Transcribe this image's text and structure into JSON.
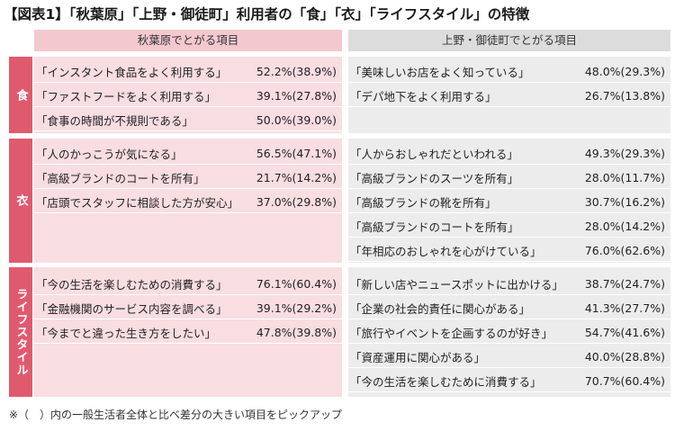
{
  "title": "【図表1】「秋葉原」「上野・御徒町」利用者の「食」「衣」「ライフスタイル」の特徴",
  "headers": {
    "left": "秋葉原でとがる項目",
    "right": "上野・御徒町でとがる項目"
  },
  "categories": {
    "food": "食",
    "clothing": "衣",
    "lifestyle": "ライフスタイル"
  },
  "food": {
    "left": [
      {
        "label": "「インスタント食品をよく利用する」",
        "value": "52.2%(38.9%)"
      },
      {
        "label": "「ファストフードをよく利用する」",
        "value": "39.1%(27.8%)"
      },
      {
        "label": "「食事の時間が不規則である」",
        "value": "50.0%(39.0%)"
      }
    ],
    "right": [
      {
        "label": "「美味しいお店をよく知っている」",
        "value": "48.0%(29.3%)"
      },
      {
        "label": "「デパ地下をよく利用する」",
        "value": "26.7%(13.8%)"
      }
    ]
  },
  "clothing": {
    "left": [
      {
        "label": "「人のかっこうが気になる」",
        "value": "56.5%(47.1%)"
      },
      {
        "label": "「高級ブランドのコートを所有」",
        "value": "21.7%(14.2%)"
      },
      {
        "label": "「店頭でスタッフに相談した方が安心」",
        "value": "37.0%(29.8%)"
      }
    ],
    "right": [
      {
        "label": "「人からおしゃれだといわれる」",
        "value": "49.3%(29.3%)"
      },
      {
        "label": "「高級ブランドのスーツを所有」",
        "value": "28.0%(11.7%)"
      },
      {
        "label": "「高級ブランドの靴を所有」",
        "value": "30.7%(16.2%)"
      },
      {
        "label": "「高級ブランドのコートを所有」",
        "value": "28.0%(14.2%)"
      },
      {
        "label": "「年相応のおしゃれを心がけている」",
        "value": "76.0%(62.6%)"
      }
    ]
  },
  "lifestyle": {
    "left": [
      {
        "label": "「今の生活を楽しむための消費する」",
        "value": "76.1%(60.4%)"
      },
      {
        "label": "「金融機関のサービス内容を調べる」",
        "value": "39.1%(29.2%)"
      },
      {
        "label": "「今までと違った生き方をしたい」",
        "value": "47.8%(39.8%)"
      }
    ],
    "right": [
      {
        "label": "「新しい店やニュースポットに出かける」",
        "value": "38.7%(24.7%)"
      },
      {
        "label": "「企業の社会的責任に関心がある」",
        "value": "41.3%(27.7%)"
      },
      {
        "label": "「旅行やイベントを企画するのが好き」",
        "value": "54.7%(41.6%)"
      },
      {
        "label": "「資産運用に関心がある」",
        "value": "40.0%(28.8%)"
      },
      {
        "label": "「今の生活を楽しむために消費する」",
        "value": "70.7%(60.4%)"
      }
    ]
  },
  "footnote": "※（　）内の一般生活者全体と比べ差分の大きい項目をピックアップ",
  "colors": {
    "category": "#e05a6e",
    "left_panel": "#f8dde1",
    "left_header": "#f3c9cf",
    "right_panel": "#ececec",
    "right_header": "#dcdcdc"
  }
}
